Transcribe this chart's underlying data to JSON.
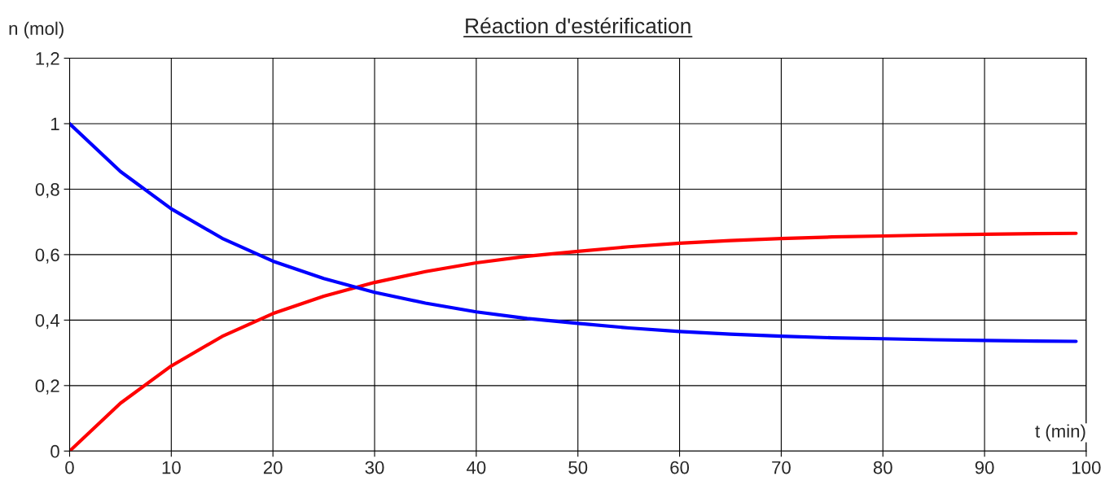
{
  "chart_data": {
    "type": "line",
    "title": "Réaction d'estérification",
    "xlabel": "t (min)",
    "ylabel": "n (mol)",
    "x": [
      0,
      5,
      10,
      15,
      20,
      25,
      30,
      35,
      40,
      45,
      50,
      55,
      60,
      65,
      70,
      75,
      80,
      85,
      90,
      95,
      99
    ],
    "series": [
      {
        "color": "#ff0000",
        "values": [
          0,
          0.146,
          0.26,
          0.35,
          0.42,
          0.473,
          0.515,
          0.548,
          0.575,
          0.595,
          0.61,
          0.624,
          0.635,
          0.643,
          0.649,
          0.654,
          0.657,
          0.66,
          0.662,
          0.664,
          0.665
        ]
      },
      {
        "color": "#0000ff",
        "values": [
          1,
          0.854,
          0.74,
          0.65,
          0.58,
          0.527,
          0.485,
          0.452,
          0.425,
          0.405,
          0.39,
          0.376,
          0.365,
          0.357,
          0.351,
          0.346,
          0.343,
          0.34,
          0.338,
          0.336,
          0.335
        ]
      }
    ],
    "xlim": [
      0,
      100
    ],
    "xticks": [
      0,
      10,
      20,
      30,
      40,
      50,
      60,
      70,
      80,
      90,
      100
    ],
    "ylim": [
      0,
      1.2
    ],
    "yticks": [
      0,
      {
        "value": 0.2,
        "label": "0,2"
      },
      {
        "value": 0.4,
        "label": "0,4"
      },
      {
        "value": 0.6,
        "label": "0,6"
      },
      {
        "value": 0.8,
        "label": "0,8"
      },
      1,
      {
        "value": 1.2,
        "label": "1,2"
      }
    ],
    "grid": true,
    "legend": false,
    "marker": "none",
    "line_style": "solid"
  }
}
